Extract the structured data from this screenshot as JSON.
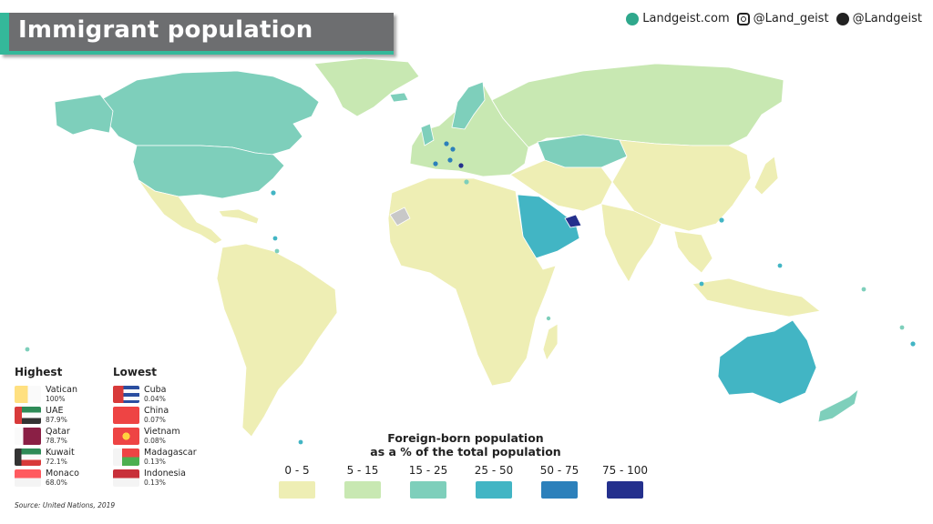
{
  "title": "Immigrant population",
  "social": {
    "website": "Landgeist.com",
    "instagram": "@Land_geist",
    "twitter": "@Landgeist"
  },
  "colors": {
    "bin_0_5": "#eeeeb4",
    "bin_5_15": "#c8e8b2",
    "bin_15_25": "#7ecfbb",
    "bin_25_50": "#42b5c4",
    "bin_50_75": "#2c80bb",
    "bin_75_100": "#24308d",
    "nodata": "#c8c8c8",
    "title_bg": "#6d6e70",
    "accent": "#34b89a"
  },
  "highest": {
    "label": "Highest",
    "items": [
      {
        "country": "Vatican",
        "value": "100%"
      },
      {
        "country": "UAE",
        "value": "87.9%"
      },
      {
        "country": "Qatar",
        "value": "78.7%"
      },
      {
        "country": "Kuwait",
        "value": "72.1%"
      },
      {
        "country": "Monaco",
        "value": "68.0%"
      }
    ]
  },
  "lowest": {
    "label": "Lowest",
    "items": [
      {
        "country": "Cuba",
        "value": "0.04%"
      },
      {
        "country": "China",
        "value": "0.07%"
      },
      {
        "country": "Vietnam",
        "value": "0.08%"
      },
      {
        "country": "Madagascar",
        "value": "0.13%"
      },
      {
        "country": "Indonesia",
        "value": "0.13%"
      }
    ]
  },
  "legend": {
    "title_line1": "Foreign-born population",
    "title_line2": "as a % of the total population",
    "bins": [
      "0 - 5",
      "5 - 15",
      "15 - 25",
      "25 - 50",
      "50 - 75",
      "75 - 100"
    ]
  },
  "source": "Source: United Nations, 2019"
}
